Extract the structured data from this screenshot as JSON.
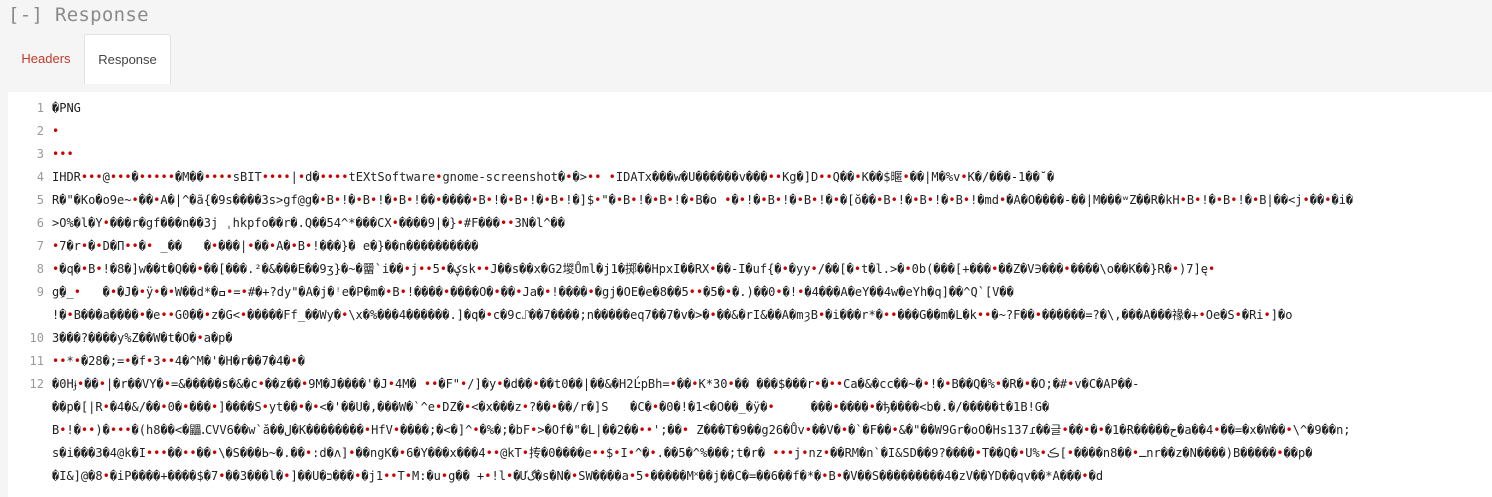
{
  "title": "[-] Response",
  "tabs": {
    "headers_label": "Headers",
    "response_label": "Response"
  },
  "colors": {
    "active_link": "#c0392b",
    "gutter_text": "#999999",
    "control_char": "#cc0000"
  },
  "line_numbers": [
    "1",
    "2",
    "3",
    "4",
    "5",
    "6",
    "7",
    "8",
    "9",
    "",
    "10",
    "11",
    "12",
    "",
    "",
    "",
    ""
  ],
  "lines": [
    "�PNG",
    "•",
    "•••",
    "IHDR•••@•••�•••••�M��••••sBIT••••|•d�••••tEXtSoftware•gnome-screenshot�•�>•• •IDATx���w�U������v���••Kg�]D••Q��•K��$暱•��|M�%v•K�/���-1��˘�",
    "R�\"�Ko�o9e~•��•A�|^�ã{�9s����3s>gf@g�•B•!�•B•!�•B•!��•����•B•!�•B•!�•B•!�]$•\"�•B•!�•B•!�•B�o •�•!�•B•!�•B•!�•�[ŏ��•B•!�•B•!�•B•!�md•�A�O����-��|M���ʷZ��R�kH•B•!�•B•!�•B|��<j•��•�i�",
    ">O%�l�Y•���r�gf���n��3j ˌhkpfo��r�.Q��54^*���CX•����9|�}•#F���••3N�l^��",
    "•7�r•�•D�Π••�• _��   �•���|•��•A�•B•!���}� e�}��n����������",
    "•�q�•B•!�8�]w��t�Q��•��[���.²�&���E��9ʒ}�~�羀`i��•j••5•�ؼsk••J��s��x�G2堫Ůml�j1�掷��HpxI��RX•��-I�uf{�•�yy•/��[�•t�l.>�•0b(���[+���•��Z�V∋���•����\\o��K��}R�•)7]ę•",
    "gِ�_•   �•�J�•ÿ•�•W��d*�ߛ•=•#�+?dy\"�A�j�ꜝe�P�m�•B•!����•����O�•��•Ja�•!����•�gj�OE�e�8��5••�5�•�.)��0•�!•�4���A�eY��4w�eYh�q]��^Q`[V��",
    "!�•B���a����•�e••G0��•z�G<•�����Ff_��Wy�•\\x�%���4������.]�q�•c�9c⑀��7����;n�����eq7��7�v�>�•��&�rI&��A�mȝB•�i���r*�••���G��m�L�k••�~?F��•������=?�\\,���A���禒�+•Oe�S•�Ri•]�o",
    "3���?����y%Z��W�t�O�•a�p�",
    "••*•�28�;=•�f•3••4�^M�'�H�r��7�4�•�",
    "�0Hɉ•��•|�r��VY�•=&�����s�&�c•��z��•9M�J����'�J•4M� ••�F\"•/]�y•�d��•��t0��|��&�H2Ŀ́pBh=•��•K*30•�� ���$���r•�••Ca�&�cc��~�•!�•B��Q�%•�R�•�O;�#•v�C�AP��-",
    "��p�[|R•�4�&/��•0�•���•]����S•yt��•�•<�'��U�,���W�`^e•DZ�•<�x���z•?��•��/r�]S   �C�•�0�!�1<�O��_�ÿ�•     ���•����•�ђ����<b�.�/�����t�1B!G�",
    "B•!�••)�•••�(h8��<�鼺ꓸCVV6��w`ă��ل�K��������•HfV•����;�<�]^•�%�;�bF•>�Of�\"�L|��2��••';��• Z���T�9��g26�Ův•��V�•�`�F��•&�\"��W9Gr�oO�Hs137ɾ��글•��•�•�1�Ɍ�����ح�a��4•��=�x�W��•\\^�9��n;",
    "s�i���3�4@k�I•••��••��•\\�S���Ь~�.��•:d�ʌ]•��ngK�•6�Y���x���4••@kT•抟�0����e••$•I•^�•.��5�^%���;t�r� •••j•nz•��RM�n`�I&SD��9?����•T��Q�•U%•ڪ[•����n8��•ـnr��z�N����)B�����•��p�",
    "�I&]@�8•�iP����+����$�7•��3���l�•]��U�כ���•�j1••T•M:�u•g�� +•!l•�Ưگ�s�N�•SW����a•5•�����M˟��j��C�=��6��f�*�•B•�V��S���������4�zV��YD��qv��*A���•�d"
  ]
}
